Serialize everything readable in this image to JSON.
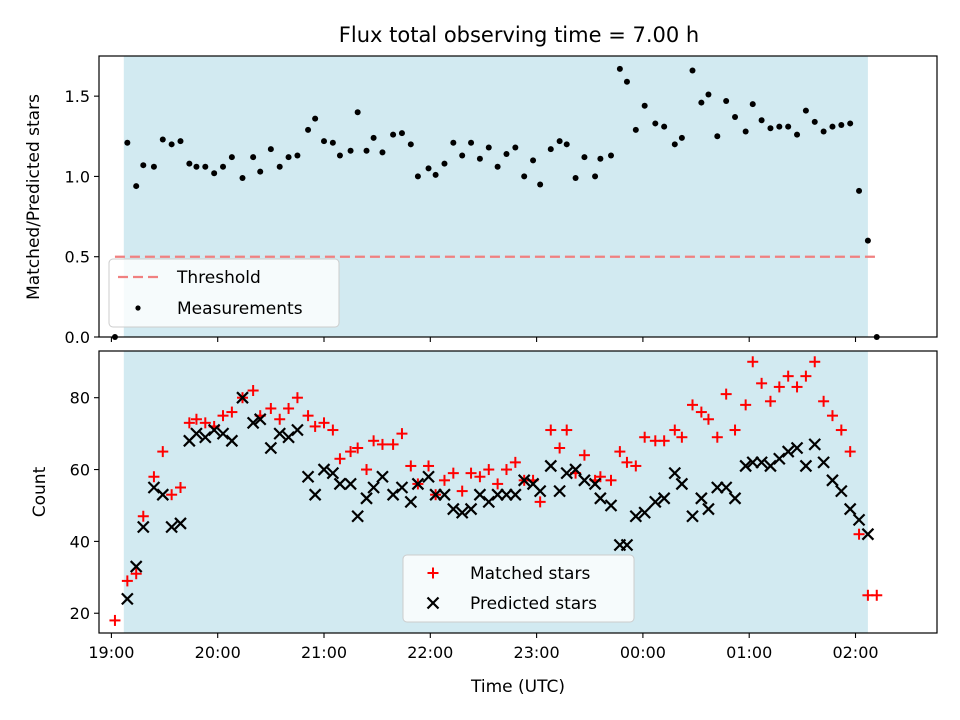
{
  "chart_data": [
    {
      "type": "scatter",
      "title": "Flux total observing time = 7.00 h",
      "xlabel": "",
      "ylabel": "Matched/Predicted stars",
      "xlim": [
        "18:53",
        "02:46"
      ],
      "ylim": [
        0,
        1.75
      ],
      "x_ticks": [
        "19:00",
        "20:00",
        "21:00",
        "22:00",
        "23:00",
        "00:00",
        "01:00",
        "02:00"
      ],
      "y_ticks": [
        "0.0",
        "0.5",
        "1.0",
        "1.5"
      ],
      "observing_span": [
        "19:07",
        "02:07"
      ],
      "observing_span_color": "#add8e6",
      "threshold": {
        "name": "Threshold",
        "value": 0.5,
        "x_range": [
          "19:02",
          "02:11"
        ],
        "color": "#f08080"
      },
      "legend_position": "lower-left",
      "series": [
        {
          "name": "Measurements",
          "color": "#000000",
          "marker": "dot",
          "x": [
            "19:02",
            "19:09",
            "19:14",
            "19:18",
            "19:24",
            "19:29",
            "19:34",
            "19:39",
            "19:44",
            "19:48",
            "19:53",
            "19:58",
            "20:03",
            "20:08",
            "20:14",
            "20:20",
            "20:24",
            "20:30",
            "20:35",
            "20:40",
            "20:45",
            "20:51",
            "20:55",
            "21:00",
            "21:05",
            "21:09",
            "21:15",
            "21:19",
            "21:24",
            "21:28",
            "21:33",
            "21:39",
            "21:44",
            "21:49",
            "21:53",
            "21:59",
            "22:03",
            "22:08",
            "22:13",
            "22:18",
            "22:23",
            "22:28",
            "22:33",
            "22:38",
            "22:43",
            "22:48",
            "22:53",
            "22:58",
            "23:02",
            "23:08",
            "23:13",
            "23:17",
            "23:22",
            "23:27",
            "23:33",
            "23:36",
            "23:42",
            "23:47",
            "23:51",
            "23:56",
            "00:01",
            "00:07",
            "00:12",
            "00:18",
            "00:22",
            "00:28",
            "00:33",
            "00:37",
            "00:42",
            "00:47",
            "00:52",
            "00:58",
            "01:02",
            "01:07",
            "01:12",
            "01:17",
            "01:22",
            "01:27",
            "01:32",
            "01:37",
            "01:42",
            "01:47",
            "01:52",
            "01:57",
            "02:02",
            "02:07",
            "02:12"
          ],
          "y": [
            0.0,
            1.21,
            0.94,
            1.07,
            1.06,
            1.23,
            1.2,
            1.22,
            1.08,
            1.06,
            1.06,
            1.02,
            1.06,
            1.12,
            0.99,
            1.12,
            1.03,
            1.17,
            1.06,
            1.12,
            1.13,
            1.29,
            1.36,
            1.22,
            1.21,
            1.13,
            1.16,
            1.4,
            1.16,
            1.24,
            1.15,
            1.26,
            1.27,
            1.2,
            1.0,
            1.05,
            1.01,
            1.08,
            1.21,
            1.13,
            1.21,
            1.11,
            1.18,
            1.06,
            1.14,
            1.18,
            1.0,
            1.1,
            0.95,
            1.17,
            1.22,
            1.2,
            0.99,
            1.12,
            1.0,
            1.11,
            1.13,
            1.67,
            1.59,
            1.29,
            1.44,
            1.33,
            1.31,
            1.2,
            1.24,
            1.66,
            1.46,
            1.51,
            1.25,
            1.47,
            1.37,
            1.28,
            1.45,
            1.35,
            1.3,
            1.31,
            1.31,
            1.26,
            1.41,
            1.34,
            1.28,
            1.31,
            1.32,
            1.33,
            0.91,
            0.6,
            0.0
          ]
        }
      ]
    },
    {
      "type": "scatter",
      "title": "",
      "xlabel": "Time (UTC)",
      "ylabel": "Count",
      "xlim": [
        "18:53",
        "02:46"
      ],
      "ylim": [
        14.5,
        93
      ],
      "x_ticks": [
        "19:00",
        "20:00",
        "21:00",
        "22:00",
        "23:00",
        "00:00",
        "01:00",
        "02:00"
      ],
      "y_ticks": [
        "20",
        "40",
        "60",
        "80"
      ],
      "observing_span": [
        "19:07",
        "02:07"
      ],
      "observing_span_color": "#add8e6",
      "legend_position": "lower-center",
      "series": [
        {
          "name": "Matched stars",
          "color": "#ff0000",
          "marker": "plus",
          "x": [
            "19:02",
            "19:09",
            "19:14",
            "19:18",
            "19:24",
            "19:29",
            "19:34",
            "19:39",
            "19:44",
            "19:48",
            "19:53",
            "19:58",
            "20:03",
            "20:08",
            "20:14",
            "20:20",
            "20:24",
            "20:30",
            "20:35",
            "20:40",
            "20:45",
            "20:51",
            "20:55",
            "21:00",
            "21:05",
            "21:09",
            "21:15",
            "21:19",
            "21:24",
            "21:28",
            "21:33",
            "21:39",
            "21:44",
            "21:49",
            "21:53",
            "21:59",
            "22:03",
            "22:08",
            "22:13",
            "22:18",
            "22:23",
            "22:28",
            "22:33",
            "22:38",
            "22:43",
            "22:48",
            "22:53",
            "22:58",
            "23:02",
            "23:08",
            "23:13",
            "23:17",
            "23:22",
            "23:27",
            "23:33",
            "23:36",
            "23:42",
            "23:47",
            "23:51",
            "23:56",
            "00:01",
            "00:07",
            "00:12",
            "00:18",
            "00:22",
            "00:28",
            "00:33",
            "00:37",
            "00:42",
            "00:47",
            "00:52",
            "00:58",
            "01:02",
            "01:07",
            "01:12",
            "01:17",
            "01:22",
            "01:27",
            "01:32",
            "01:37",
            "01:42",
            "01:47",
            "01:52",
            "01:57",
            "02:02",
            "02:07",
            "02:12"
          ],
          "y": [
            18,
            29,
            31,
            47,
            58,
            65,
            53,
            55,
            73,
            74,
            73,
            72,
            75,
            76,
            80,
            82,
            75,
            77,
            74,
            77,
            80,
            75,
            72,
            73,
            71,
            63,
            65,
            66,
            60,
            68,
            67,
            67,
            70,
            61,
            56,
            61,
            53,
            57,
            59,
            54,
            59,
            58,
            60,
            56,
            60,
            62,
            57,
            57,
            51,
            71,
            66,
            71,
            59,
            64,
            57,
            58,
            57,
            65,
            62,
            61,
            69,
            68,
            68,
            71,
            69,
            78,
            76,
            74,
            69,
            81,
            71,
            78,
            90,
            84,
            79,
            83,
            86,
            83,
            86,
            90,
            79,
            75,
            71,
            65,
            42,
            25,
            25
          ]
        },
        {
          "name": "Predicted stars",
          "color": "#000000",
          "marker": "x",
          "x": [
            "19:09",
            "19:14",
            "19:18",
            "19:24",
            "19:29",
            "19:34",
            "19:39",
            "19:44",
            "19:48",
            "19:53",
            "19:58",
            "20:03",
            "20:08",
            "20:14",
            "20:20",
            "20:24",
            "20:30",
            "20:35",
            "20:40",
            "20:45",
            "20:51",
            "20:55",
            "21:00",
            "21:05",
            "21:09",
            "21:15",
            "21:19",
            "21:24",
            "21:28",
            "21:33",
            "21:39",
            "21:44",
            "21:49",
            "21:53",
            "21:59",
            "22:03",
            "22:08",
            "22:13",
            "22:18",
            "22:23",
            "22:28",
            "22:33",
            "22:38",
            "22:43",
            "22:48",
            "22:53",
            "22:58",
            "23:02",
            "23:08",
            "23:13",
            "23:17",
            "23:22",
            "23:27",
            "23:33",
            "23:36",
            "23:42",
            "23:47",
            "23:51",
            "23:56",
            "00:01",
            "00:07",
            "00:12",
            "00:18",
            "00:22",
            "00:28",
            "00:33",
            "00:37",
            "00:42",
            "00:47",
            "00:52",
            "00:58",
            "01:02",
            "01:07",
            "01:12",
            "01:17",
            "01:22",
            "01:27",
            "01:32",
            "01:37",
            "01:42",
            "01:47",
            "01:52",
            "01:57",
            "02:02",
            "02:07"
          ],
          "y": [
            24,
            33,
            44,
            55,
            53,
            44,
            45,
            68,
            70,
            69,
            71,
            70,
            68,
            80,
            73,
            74,
            66,
            70,
            69,
            71,
            58,
            53,
            60,
            59,
            56,
            56,
            47,
            52,
            55,
            58,
            53,
            55,
            51,
            56,
            58,
            53,
            53,
            49,
            48,
            49,
            53,
            51,
            53,
            53,
            53,
            57,
            56,
            54,
            61,
            54,
            59,
            60,
            57,
            56,
            52,
            50,
            39,
            39,
            47,
            48,
            51,
            52,
            59,
            56,
            47,
            52,
            49,
            55,
            55,
            52,
            61,
            62,
            62,
            61,
            63,
            65,
            66,
            61,
            67,
            62,
            57,
            54,
            49,
            46,
            42
          ]
        }
      ]
    }
  ]
}
